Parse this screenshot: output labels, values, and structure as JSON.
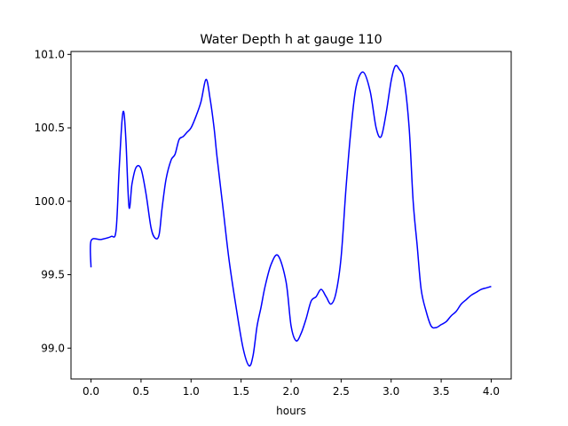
{
  "chart_data": {
    "type": "line",
    "title": "Water Depth h at gauge 110",
    "xlabel": "hours",
    "ylabel": "",
    "xlim": [
      -0.2,
      4.2
    ],
    "ylim": [
      98.79,
      101.02
    ],
    "xticks": [
      0.0,
      0.5,
      1.0,
      1.5,
      2.0,
      2.5,
      3.0,
      3.5,
      4.0
    ],
    "xtick_labels": [
      "0.0",
      "0.5",
      "1.0",
      "1.5",
      "2.0",
      "2.5",
      "3.0",
      "3.5",
      "4.0"
    ],
    "yticks": [
      99.0,
      99.5,
      100.0,
      100.5,
      101.0
    ],
    "ytick_labels": [
      "99.0",
      "99.5",
      "100.0",
      "100.5",
      "101.0"
    ],
    "grid": false,
    "series": [
      {
        "color": "#0000ff",
        "x": [
          0.0,
          0.0,
          0.1,
          0.2,
          0.25,
          0.28,
          0.31,
          0.33,
          0.35,
          0.38,
          0.41,
          0.45,
          0.5,
          0.55,
          0.6,
          0.64,
          0.68,
          0.71,
          0.75,
          0.8,
          0.84,
          0.88,
          0.92,
          0.96,
          1.0,
          1.05,
          1.1,
          1.15,
          1.19,
          1.23,
          1.26,
          1.32,
          1.38,
          1.45,
          1.52,
          1.58,
          1.62,
          1.66,
          1.7,
          1.74,
          1.8,
          1.87,
          1.95,
          2.0,
          2.05,
          2.1,
          2.15,
          2.2,
          2.25,
          2.3,
          2.35,
          2.4,
          2.45,
          2.5,
          2.55,
          2.6,
          2.65,
          2.72,
          2.79,
          2.85,
          2.9,
          2.95,
          3.0,
          3.04,
          3.08,
          3.13,
          3.18,
          3.22,
          3.26,
          3.3,
          3.35,
          3.4,
          3.45,
          3.5,
          3.55,
          3.6,
          3.65,
          3.7,
          3.75,
          3.8,
          3.85,
          3.9,
          3.95,
          4.0
        ],
        "y": [
          99.55,
          99.73,
          99.74,
          99.76,
          99.8,
          100.2,
          100.55,
          100.6,
          100.4,
          99.96,
          100.12,
          100.23,
          100.22,
          100.05,
          99.82,
          99.75,
          99.77,
          99.95,
          100.15,
          100.28,
          100.32,
          100.42,
          100.44,
          100.47,
          100.5,
          100.58,
          100.68,
          100.83,
          100.7,
          100.5,
          100.3,
          99.95,
          99.6,
          99.28,
          99.0,
          98.88,
          98.95,
          99.15,
          99.28,
          99.42,
          99.57,
          99.63,
          99.45,
          99.15,
          99.05,
          99.1,
          99.2,
          99.32,
          99.35,
          99.4,
          99.35,
          99.3,
          99.38,
          99.62,
          100.1,
          100.5,
          100.78,
          100.88,
          100.75,
          100.5,
          100.44,
          100.6,
          100.82,
          100.92,
          100.9,
          100.82,
          100.5,
          100.0,
          99.7,
          99.4,
          99.25,
          99.15,
          99.14,
          99.16,
          99.18,
          99.22,
          99.25,
          99.3,
          99.33,
          99.36,
          99.38,
          99.4,
          99.41,
          99.42
        ]
      }
    ]
  }
}
